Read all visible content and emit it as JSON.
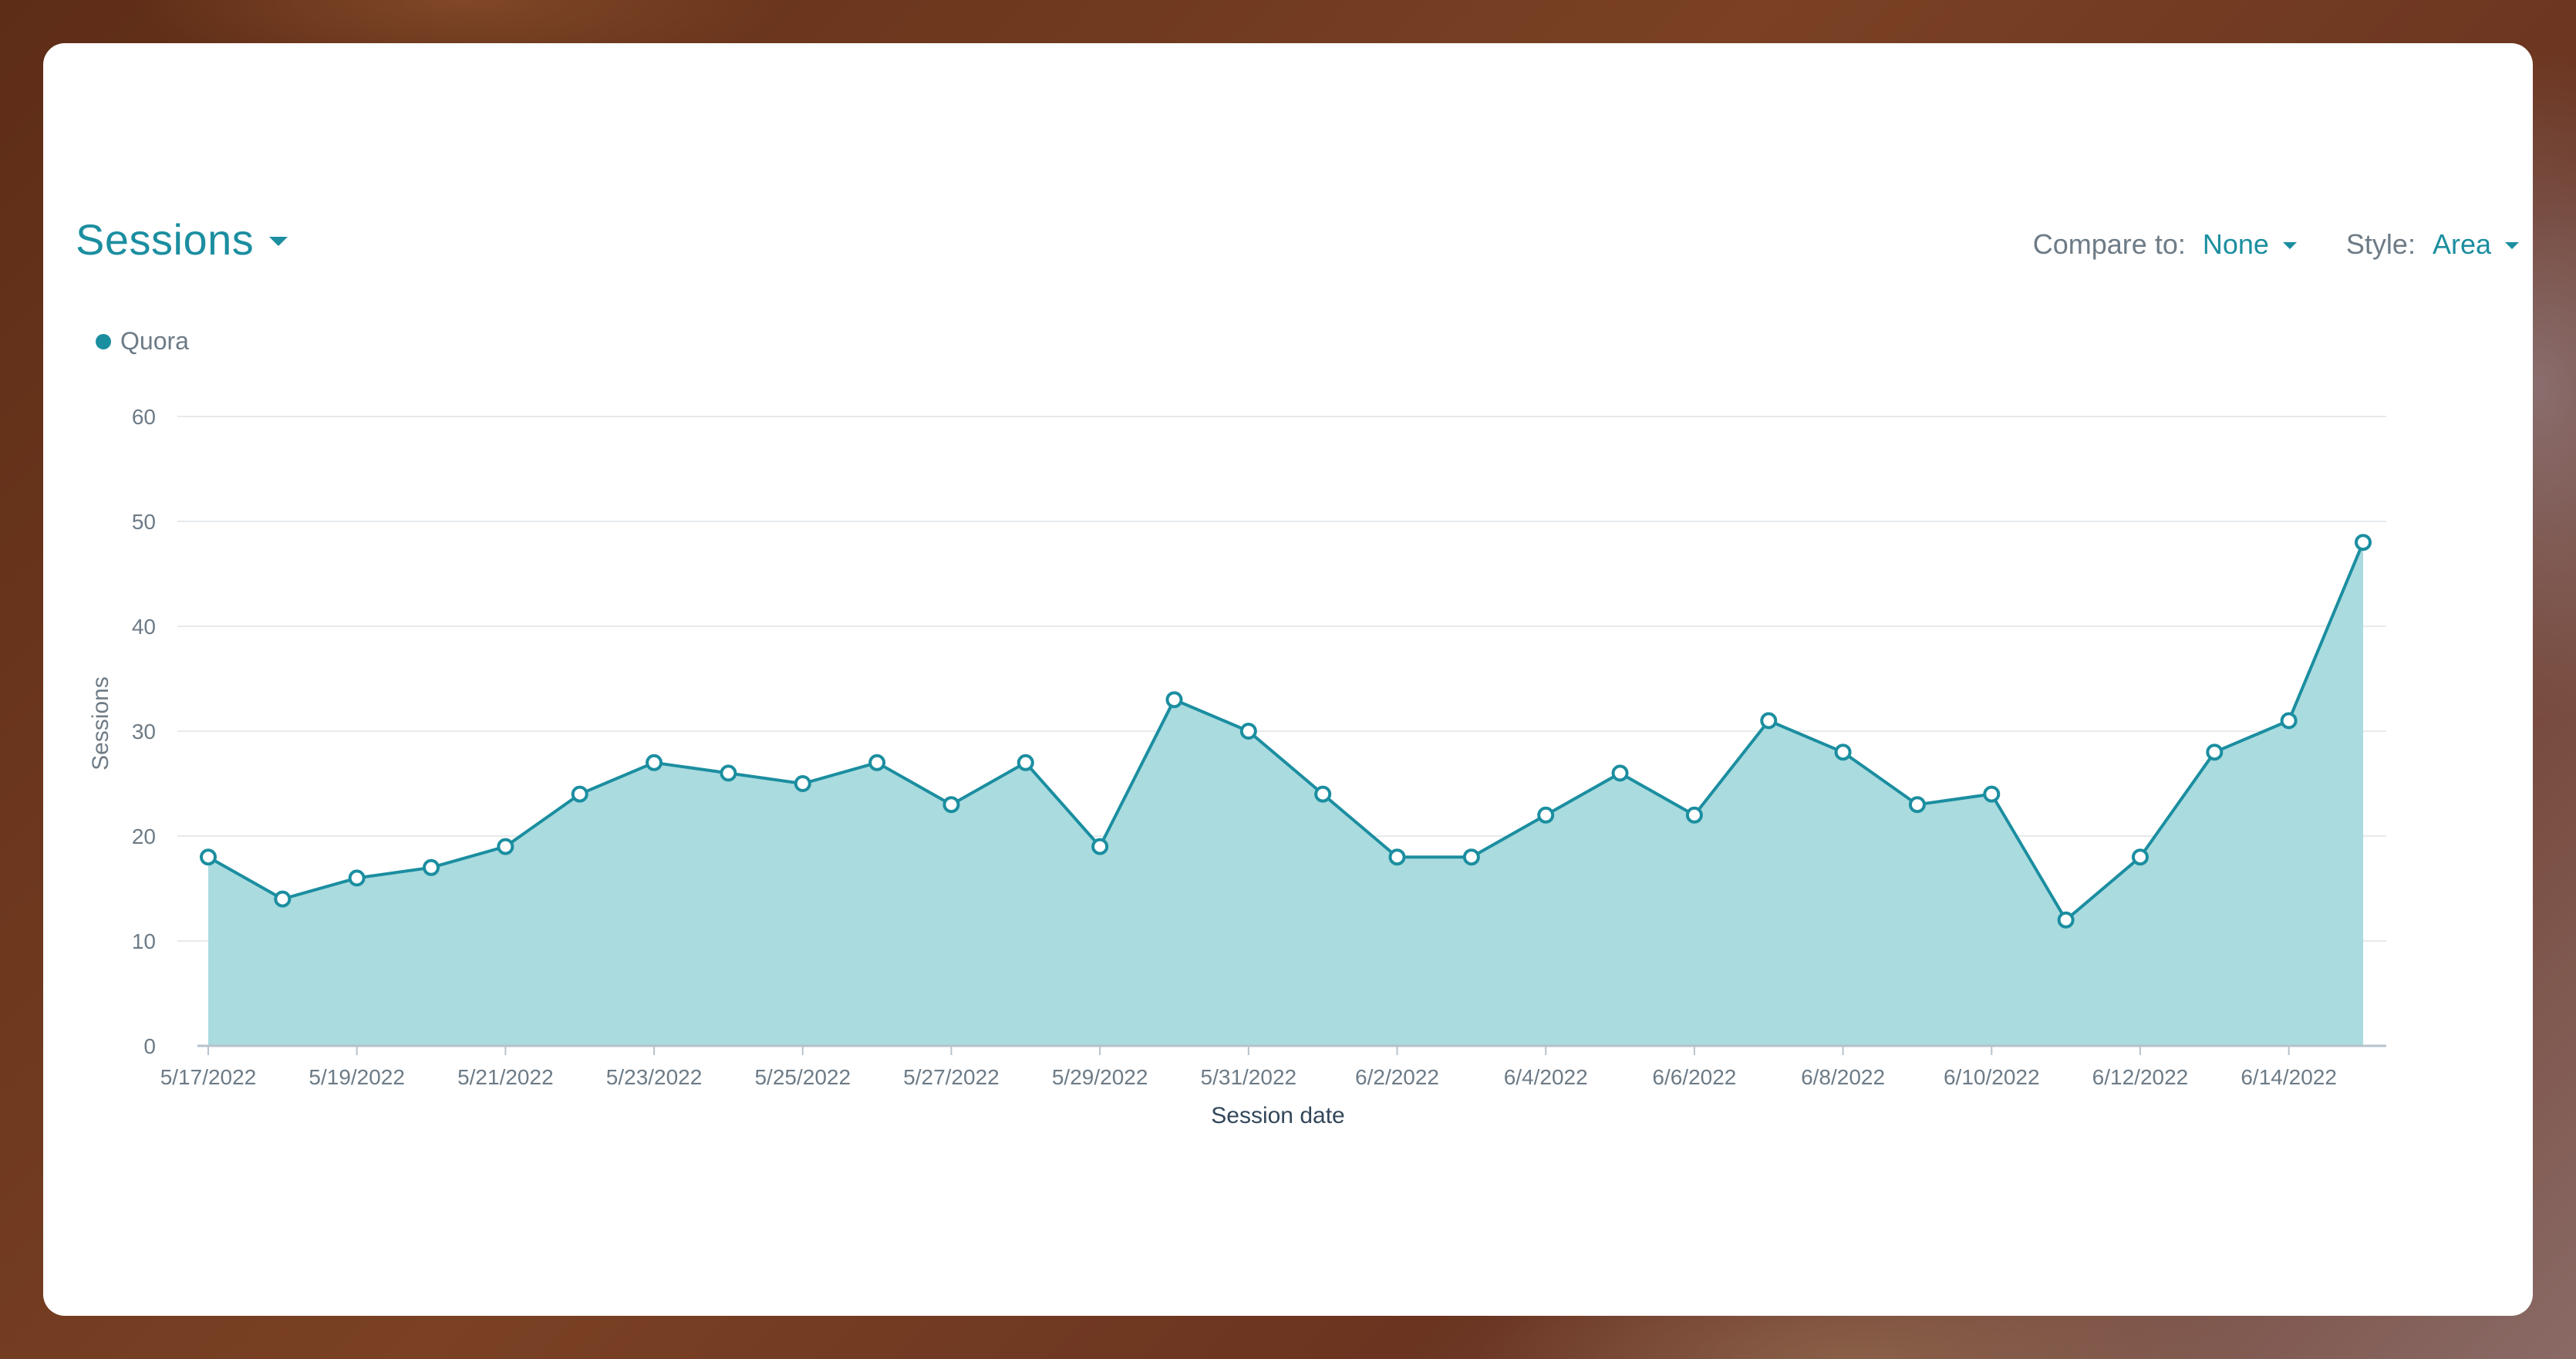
{
  "header": {
    "metric_label": "Sessions",
    "compare_label": "Compare to:",
    "compare_value": "None",
    "style_label": "Style:",
    "style_value": "Area"
  },
  "colors": {
    "accent": "#1b8ea0",
    "area_fill": "#a9dbdf",
    "line": "#1b8ea0",
    "grid": "#e6eaed"
  },
  "chart_data": {
    "type": "area",
    "title": "Sessions",
    "xlabel": "Session date",
    "ylabel": "Sessions",
    "ylim": [
      0,
      60
    ],
    "yticks": [
      0,
      10,
      20,
      30,
      40,
      50,
      60
    ],
    "grid": true,
    "legend_position": "top-left",
    "x": [
      "5/17/2022",
      "5/18/2022",
      "5/19/2022",
      "5/20/2022",
      "5/21/2022",
      "5/22/2022",
      "5/23/2022",
      "5/24/2022",
      "5/25/2022",
      "5/26/2022",
      "5/27/2022",
      "5/28/2022",
      "5/29/2022",
      "5/30/2022",
      "5/31/2022",
      "6/1/2022",
      "6/2/2022",
      "6/3/2022",
      "6/4/2022",
      "6/5/2022",
      "6/6/2022",
      "6/7/2022",
      "6/8/2022",
      "6/9/2022",
      "6/10/2022",
      "6/11/2022",
      "6/12/2022",
      "6/13/2022",
      "6/14/2022",
      "6/15/2022"
    ],
    "x_tick_labels": [
      "5/17/2022",
      "5/19/2022",
      "5/21/2022",
      "5/23/2022",
      "5/25/2022",
      "5/27/2022",
      "5/29/2022",
      "5/31/2022",
      "6/2/2022",
      "6/4/2022",
      "6/6/2022",
      "6/8/2022",
      "6/10/2022",
      "6/12/2022",
      "6/14/2022"
    ],
    "series": [
      {
        "name": "Quora",
        "values": [
          18,
          14,
          16,
          17,
          19,
          24,
          27,
          26,
          25,
          27,
          23,
          27,
          19,
          33,
          30,
          24,
          18,
          18,
          22,
          26,
          22,
          31,
          28,
          23,
          24,
          12,
          18,
          28,
          31,
          48
        ]
      }
    ]
  }
}
